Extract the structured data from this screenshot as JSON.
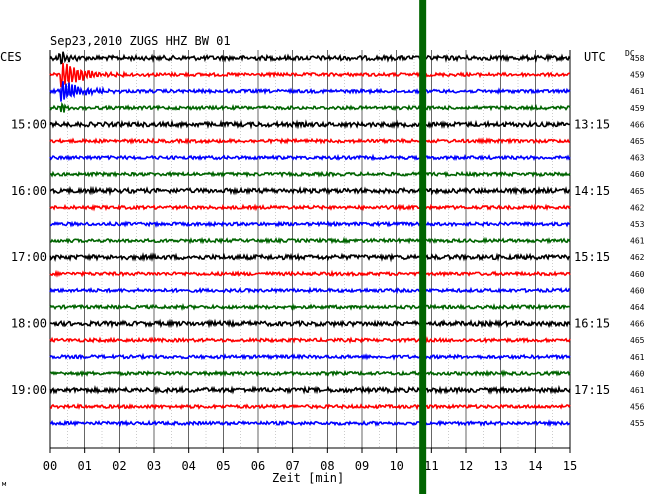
{
  "header": {
    "title": "Sep23,2010   ZUGS HHZ BW 01",
    "left_zone": "CES",
    "right_zone": "UTC",
    "dc_label": "DC",
    "footer_mark": "м"
  },
  "chart_data": {
    "type": "line",
    "title": "Sep23,2010   ZUGS HHZ BW 01",
    "xlabel": "Zeit [min]",
    "ylabel": "",
    "x_ticks": [
      "00",
      "01",
      "02",
      "03",
      "04",
      "05",
      "06",
      "07",
      "08",
      "09",
      "10",
      "11",
      "12",
      "13",
      "14",
      "15"
    ],
    "xlim": [
      0,
      15
    ],
    "grid": true,
    "trace_colors": [
      "#000000",
      "#ff0000",
      "#0000ff",
      "#006400"
    ],
    "left_time_labels": [
      {
        "row": 4,
        "label": "15:00"
      },
      {
        "row": 8,
        "label": "16:00"
      },
      {
        "row": 12,
        "label": "17:00"
      },
      {
        "row": 16,
        "label": "18:00"
      },
      {
        "row": 20,
        "label": "19:00"
      }
    ],
    "right_time_labels": [
      {
        "row": 4,
        "label": "13:15"
      },
      {
        "row": 8,
        "label": "14:15"
      },
      {
        "row": 12,
        "label": "15:15"
      },
      {
        "row": 16,
        "label": "16:15"
      },
      {
        "row": 20,
        "label": "17:15"
      }
    ],
    "dc_offsets": [
      458,
      459,
      461,
      459,
      466,
      465,
      463,
      460,
      465,
      462,
      453,
      461,
      462,
      460,
      460,
      464,
      466,
      465,
      461,
      460,
      461,
      456,
      455
    ],
    "marker": {
      "minute": 10.75,
      "color": "#006400",
      "label": "vertical marker line"
    },
    "event": {
      "row": 1,
      "minute": 0.3,
      "label": "earthquake signal"
    }
  }
}
